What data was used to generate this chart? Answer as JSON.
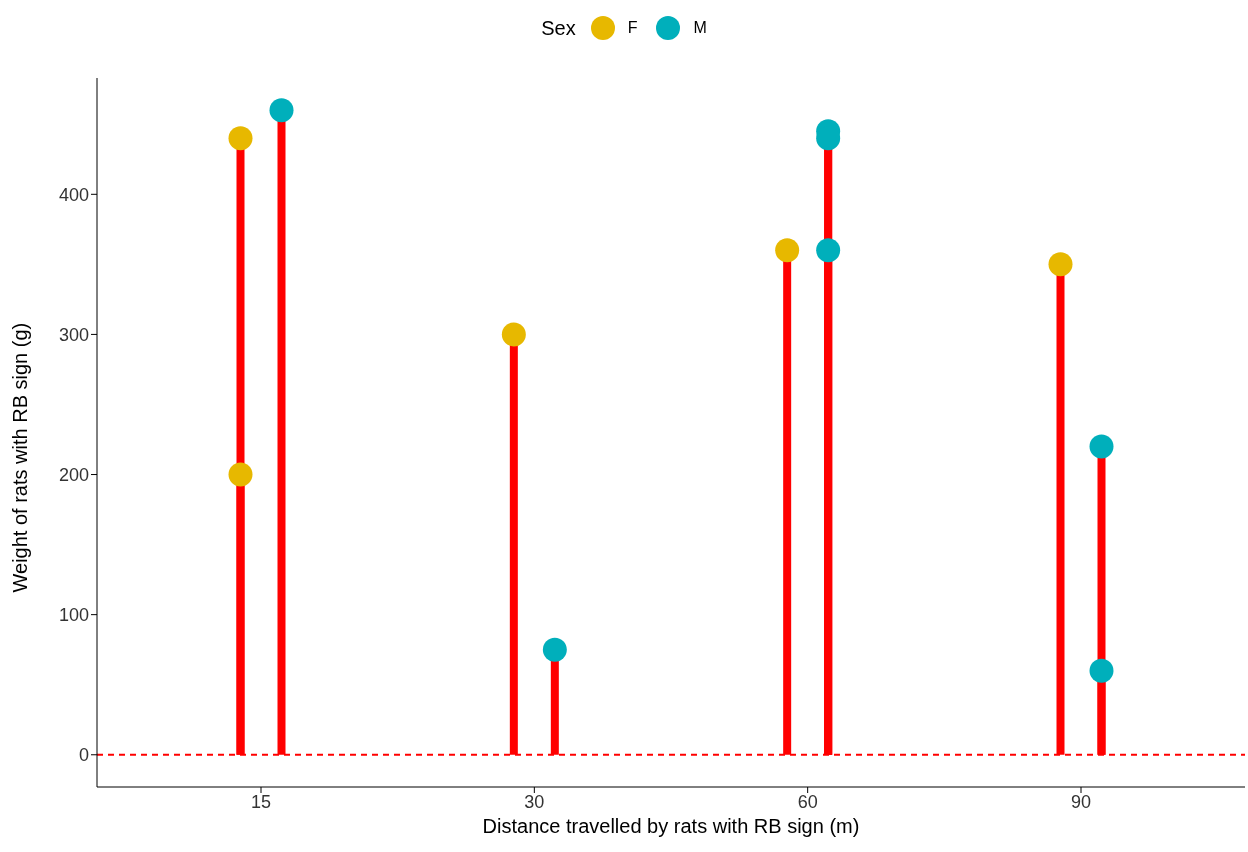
{
  "chart_data": {
    "type": "lollipop",
    "xlabel": "Distance travelled by rats with RB sign (m)",
    "ylabel": "Weight of rats with RB sign (g)",
    "legend_title": "Sex",
    "categories": [
      "15",
      "30",
      "60",
      "90"
    ],
    "series": [
      {
        "name": "F",
        "color": "#e7b800",
        "x": [
          "15",
          "15",
          "30",
          "60",
          "90"
        ],
        "values": [
          440,
          200,
          300,
          360,
          350
        ]
      },
      {
        "name": "M",
        "color": "#00afbb",
        "x": [
          "15",
          "30",
          "60",
          "60",
          "60",
          "90",
          "90"
        ],
        "values": [
          460,
          75,
          445,
          440,
          360,
          220,
          60
        ]
      }
    ],
    "ylim": [
      -23,
      483
    ],
    "yticks": [
      0,
      100,
      200,
      300,
      400
    ],
    "ref_lines": [
      {
        "axis": "y",
        "value": 0,
        "color": "#ff0000",
        "line_style": "dashed"
      }
    ],
    "grid": false,
    "legend": "top",
    "marker": "circle"
  }
}
